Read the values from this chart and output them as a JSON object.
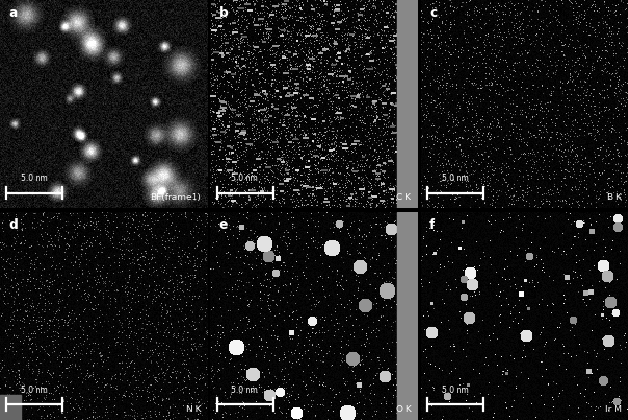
{
  "panels": [
    {
      "label": "a",
      "type": "BF",
      "scale_text": "5.0 nm",
      "caption": "BF(frame1)",
      "right_stripe": false,
      "bottom_stripe": false
    },
    {
      "label": "b",
      "type": "CK",
      "scale_text": "5.0 nm",
      "caption": "C K",
      "right_stripe": true,
      "bottom_stripe": false
    },
    {
      "label": "c",
      "type": "BK",
      "scale_text": "5.0 nm",
      "caption": "B K",
      "right_stripe": false,
      "bottom_stripe": false
    },
    {
      "label": "d",
      "type": "NK",
      "scale_text": "5.0 nm",
      "caption": "N K",
      "right_stripe": false,
      "bottom_stripe": true
    },
    {
      "label": "e",
      "type": "OK",
      "scale_text": "5.0 nm",
      "caption": "O K",
      "right_stripe": true,
      "bottom_stripe": false
    },
    {
      "label": "f",
      "type": "IrM",
      "scale_text": "5.0 nm",
      "caption": "Ir M",
      "right_stripe": false,
      "bottom_stripe": false
    }
  ],
  "bg_color": "#000000",
  "seed": 42,
  "img_size": 200
}
